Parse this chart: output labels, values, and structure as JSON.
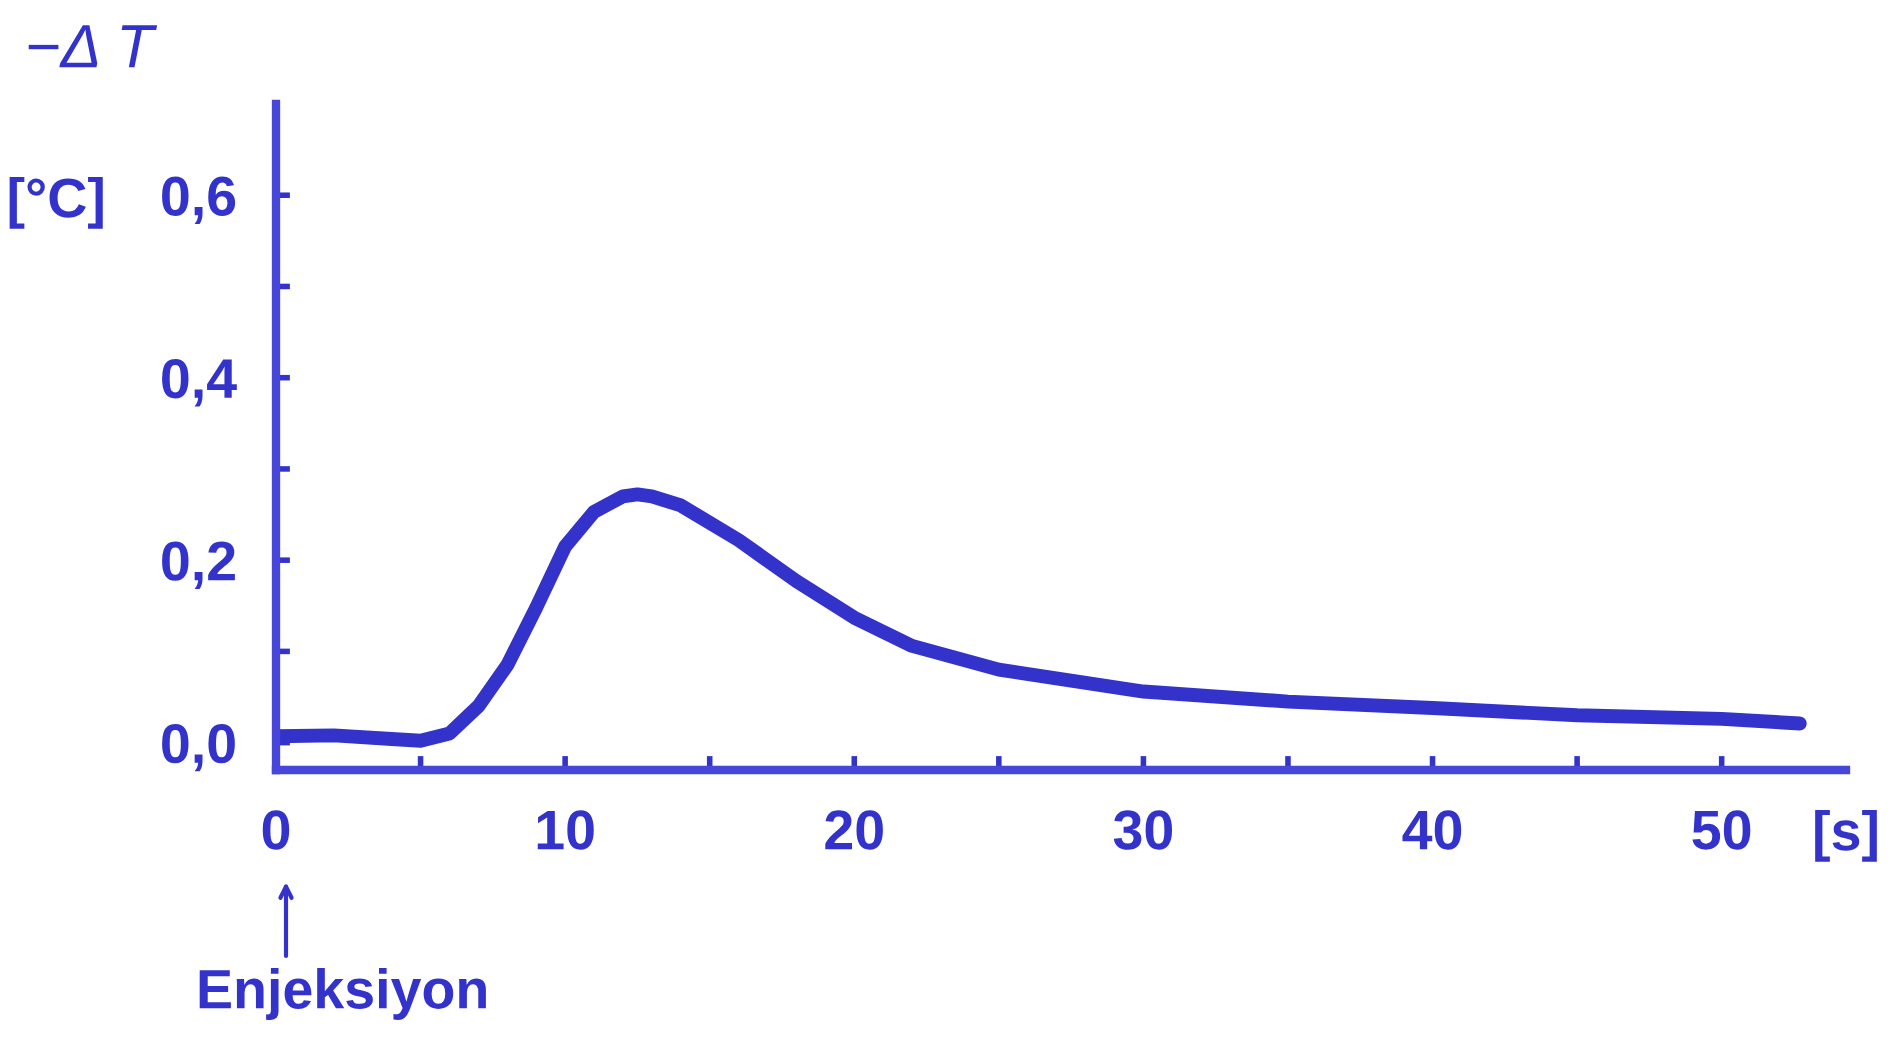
{
  "chart_data": {
    "type": "line",
    "title": "−Δ T",
    "ylabel": "[°C]",
    "xlabel": "[s]",
    "x": [
      0,
      2,
      4,
      5,
      6,
      7,
      8,
      9,
      10,
      11,
      12,
      12.5,
      13,
      14,
      16,
      18,
      20,
      22,
      25,
      30,
      35,
      40,
      45,
      50,
      52.7
    ],
    "series": [
      {
        "color": "#3333cc",
        "values": [
          0.007,
          0.008,
          0.004,
          0.002,
          0.01,
          0.04,
          0.085,
          0.148,
          0.215,
          0.253,
          0.27,
          0.272,
          0.27,
          0.26,
          0.222,
          0.177,
          0.137,
          0.106,
          0.08,
          0.056,
          0.045,
          0.038,
          0.03,
          0.026,
          0.021
        ]
      }
    ],
    "xlim": [
      0,
      54.3
    ],
    "ylim": [
      -0.03,
      0.7
    ],
    "xticks": [
      0,
      {
        "value": 5,
        "label": null
      },
      10,
      {
        "value": 15,
        "label": null
      },
      20,
      {
        "value": 25,
        "label": null
      },
      30,
      {
        "value": 35,
        "label": null
      },
      40,
      {
        "value": 45,
        "label": null
      },
      50
    ],
    "yticks": [
      {
        "value": 0,
        "label": "0,0"
      },
      {
        "value": 0.1,
        "label": null
      },
      {
        "value": 0.2,
        "label": "0,2"
      },
      {
        "value": 0.3,
        "label": null
      },
      {
        "value": 0.4,
        "label": "0,4"
      },
      {
        "value": 0.5,
        "label": null
      },
      {
        "value": 0.6,
        "label": "0,6"
      }
    ],
    "grid": false,
    "legend": false,
    "annotations": [
      "Enjeksiyon"
    ]
  }
}
